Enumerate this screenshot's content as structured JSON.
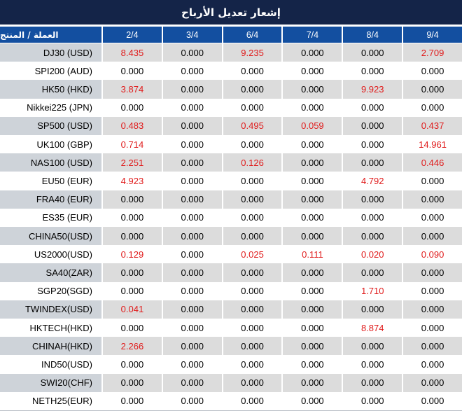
{
  "title": "إشعار تعديل الأرباح",
  "colors": {
    "title_bar_bg": "#142448",
    "header_bg": "#134fa0",
    "stripe_label_bg": "#ced3d9",
    "stripe_value_bg": "#dcdcdc",
    "nonzero_red": "#e01b1b",
    "zero_text": "#000000",
    "separator": "#ffffff"
  },
  "chart_data": {
    "type": "table",
    "title": "إشعار تعديل الأرباح",
    "columns": [
      "العملة / المنتج",
      "2/4",
      "3/4",
      "6/4",
      "7/4",
      "8/4",
      "9/4"
    ],
    "value_style_rule": "values greater than zero are shown in red, zeros in black",
    "rows": [
      {
        "label": "DJ30 (USD)",
        "values": [
          "8.435",
          "0.000",
          "9.235",
          "0.000",
          "0.000",
          "2.709"
        ]
      },
      {
        "label": "SPI200 (AUD)",
        "values": [
          "0.000",
          "0.000",
          "0.000",
          "0.000",
          "0.000",
          "0.000"
        ]
      },
      {
        "label": "HK50 (HKD)",
        "values": [
          "3.874",
          "0.000",
          "0.000",
          "0.000",
          "9.923",
          "0.000"
        ]
      },
      {
        "label": "Nikkei225 (JPN)",
        "values": [
          "0.000",
          "0.000",
          "0.000",
          "0.000",
          "0.000",
          "0.000"
        ]
      },
      {
        "label": "SP500 (USD)",
        "values": [
          "0.483",
          "0.000",
          "0.495",
          "0.059",
          "0.000",
          "0.437"
        ]
      },
      {
        "label": "UK100 (GBP)",
        "values": [
          "0.714",
          "0.000",
          "0.000",
          "0.000",
          "0.000",
          "14.961"
        ]
      },
      {
        "label": "NAS100 (USD)",
        "values": [
          "2.251",
          "0.000",
          "0.126",
          "0.000",
          "0.000",
          "0.446"
        ]
      },
      {
        "label": "EU50 (EUR)",
        "values": [
          "4.923",
          "0.000",
          "0.000",
          "0.000",
          "4.792",
          "0.000"
        ]
      },
      {
        "label": "FRA40 (EUR)",
        "values": [
          "0.000",
          "0.000",
          "0.000",
          "0.000",
          "0.000",
          "0.000"
        ]
      },
      {
        "label": "ES35 (EUR)",
        "values": [
          "0.000",
          "0.000",
          "0.000",
          "0.000",
          "0.000",
          "0.000"
        ]
      },
      {
        "label": "CHINA50(USD)",
        "values": [
          "0.000",
          "0.000",
          "0.000",
          "0.000",
          "0.000",
          "0.000"
        ]
      },
      {
        "label": "US2000(USD)",
        "values": [
          "0.129",
          "0.000",
          "0.025",
          "0.111",
          "0.020",
          "0.090"
        ]
      },
      {
        "label": "SA40(ZAR)",
        "values": [
          "0.000",
          "0.000",
          "0.000",
          "0.000",
          "0.000",
          "0.000"
        ]
      },
      {
        "label": "SGP20(SGD)",
        "values": [
          "0.000",
          "0.000",
          "0.000",
          "0.000",
          "1.710",
          "0.000"
        ]
      },
      {
        "label": "TWINDEX(USD)",
        "values": [
          "0.041",
          "0.000",
          "0.000",
          "0.000",
          "0.000",
          "0.000"
        ]
      },
      {
        "label": "HKTECH(HKD)",
        "values": [
          "0.000",
          "0.000",
          "0.000",
          "0.000",
          "8.874",
          "0.000"
        ]
      },
      {
        "label": "CHINAH(HKD)",
        "values": [
          "2.266",
          "0.000",
          "0.000",
          "0.000",
          "0.000",
          "0.000"
        ]
      },
      {
        "label": "IND50(USD)",
        "values": [
          "0.000",
          "0.000",
          "0.000",
          "0.000",
          "0.000",
          "0.000"
        ]
      },
      {
        "label": "SWI20(CHF)",
        "values": [
          "0.000",
          "0.000",
          "0.000",
          "0.000",
          "0.000",
          "0.000"
        ]
      },
      {
        "label": "NETH25(EUR)",
        "values": [
          "0.000",
          "0.000",
          "0.000",
          "0.000",
          "0.000",
          "0.000"
        ]
      }
    ]
  }
}
